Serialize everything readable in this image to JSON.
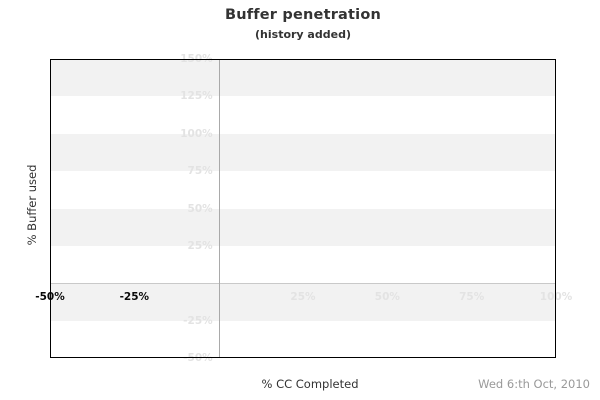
{
  "title": "Buffer penetration",
  "subtitle": "(history added)",
  "footer": {
    "date_label": "Wed 6:th Oct, 2010"
  },
  "chart_data": {
    "type": "line",
    "title": "Buffer penetration",
    "subtitle": "(history added)",
    "xlabel": "% CC Completed",
    "ylabel": "% Buffer used",
    "xlim": [
      -50,
      100
    ],
    "ylim": [
      -50,
      150
    ],
    "band_step": 25,
    "grid": "alternating-horizontal-bands",
    "legend": null,
    "series": [],
    "zero_gridlines": {
      "x": 0,
      "y": 0
    },
    "x_ticks": [
      {
        "value": -50,
        "label": "-50%",
        "emphasized": true
      },
      {
        "value": -25,
        "label": "-25%",
        "emphasized": true
      },
      {
        "value": 25,
        "label": "25%",
        "emphasized": false
      },
      {
        "value": 50,
        "label": "50%",
        "emphasized": false
      },
      {
        "value": 75,
        "label": "75%",
        "emphasized": false
      },
      {
        "value": 100,
        "label": "100%",
        "emphasized": false
      }
    ],
    "y_ticks": [
      {
        "value": 150,
        "label": "150%"
      },
      {
        "value": 125,
        "label": "125%"
      },
      {
        "value": 100,
        "label": "100%"
      },
      {
        "value": 75,
        "label": "75%"
      },
      {
        "value": 50,
        "label": "50%"
      },
      {
        "value": 25,
        "label": "25%"
      },
      {
        "value": -25,
        "label": "-25%"
      },
      {
        "value": -50,
        "label": "-50%"
      }
    ]
  },
  "colors": {
    "band_gray": "#f2f2f2",
    "band_white": "#ffffff",
    "faint_label": "#e3e3e3",
    "dark_label": "#0a0a0a",
    "zero_line_vertical": "#a9a9a9",
    "zero_line_horizontal": "#c9c9c9",
    "plot_border": "#000000",
    "title_color": "#333333",
    "axis_title_color": "#333333",
    "date_color": "#999999"
  }
}
